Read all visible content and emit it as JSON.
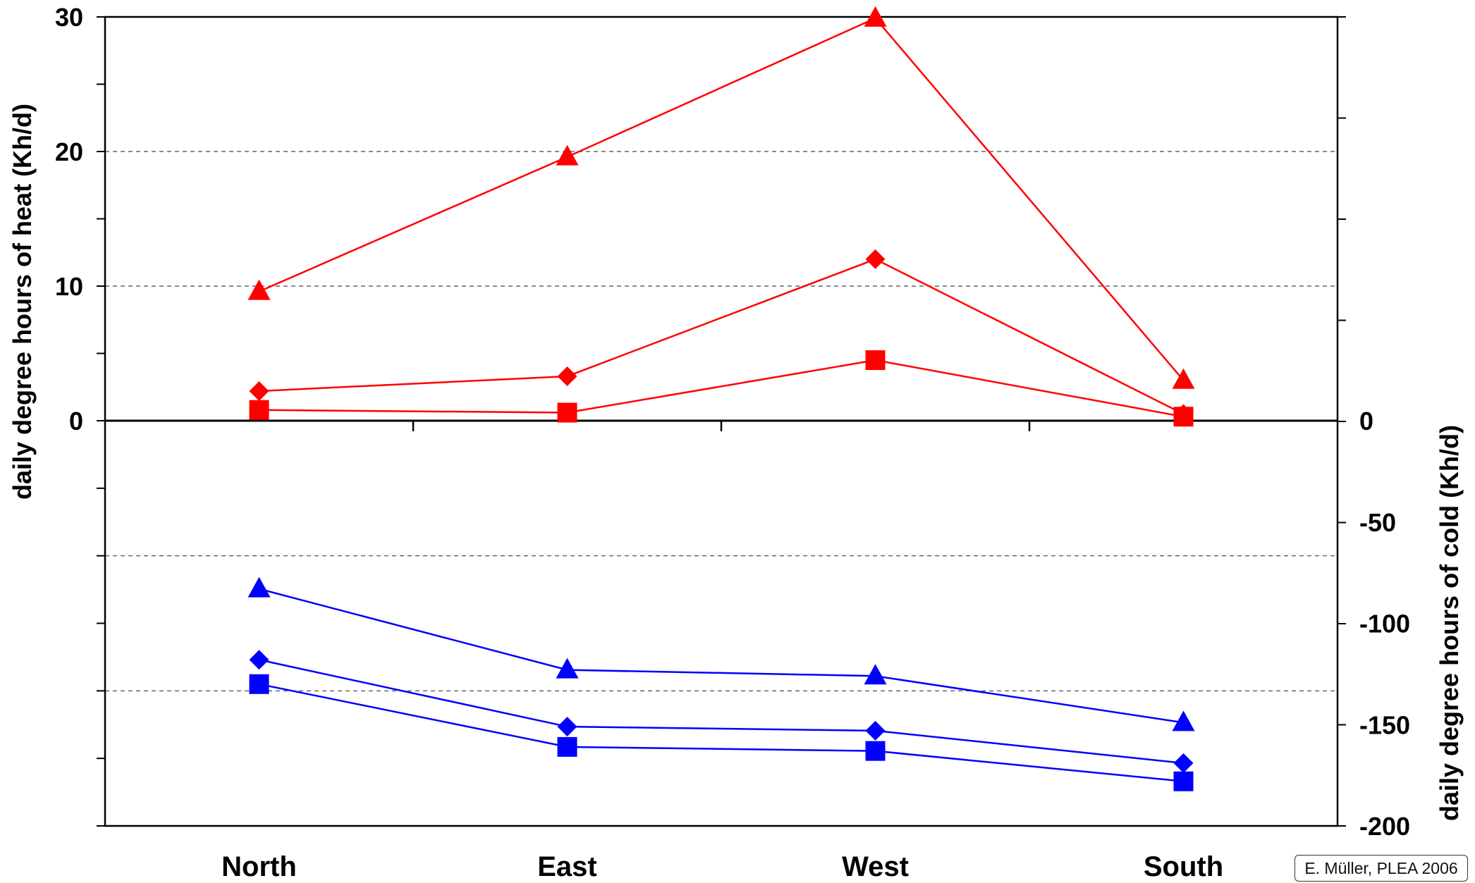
{
  "chart_data": {
    "type": "line",
    "categories": [
      "North",
      "East",
      "West",
      "South"
    ],
    "left_axis": {
      "label": "daily degree hours of heat (Kh/d)",
      "ylim": [
        0,
        30
      ],
      "ticks": [
        "0",
        "10",
        "20",
        "30"
      ]
    },
    "right_axis": {
      "label": "daily degree hours of cold (Kh/d)",
      "ylim": [
        -200,
        0
      ],
      "ticks": [
        "0",
        "-50",
        "-100",
        "-150",
        "-200"
      ]
    },
    "grid": "dashed horizontal",
    "series": [
      {
        "axis": "left",
        "color": "#ff0000",
        "marker": "triangle",
        "values": [
          9.6,
          19.6,
          29.9,
          3.0
        ]
      },
      {
        "axis": "left",
        "color": "#ff0000",
        "marker": "diamond",
        "values": [
          2.2,
          3.3,
          12.0,
          0.5
        ]
      },
      {
        "axis": "left",
        "color": "#ff0000",
        "marker": "square",
        "values": [
          0.8,
          0.6,
          4.5,
          0.3
        ]
      },
      {
        "axis": "right",
        "color": "#0000ff",
        "marker": "triangle",
        "values": [
          -83,
          -123,
          -126,
          -149
        ]
      },
      {
        "axis": "right",
        "color": "#0000ff",
        "marker": "diamond",
        "values": [
          -118,
          -151,
          -153,
          -169
        ]
      },
      {
        "axis": "right",
        "color": "#0000ff",
        "marker": "square",
        "values": [
          -130,
          -161,
          -163,
          -178
        ]
      }
    ],
    "annotation": "E. Müller, PLEA 2006"
  }
}
